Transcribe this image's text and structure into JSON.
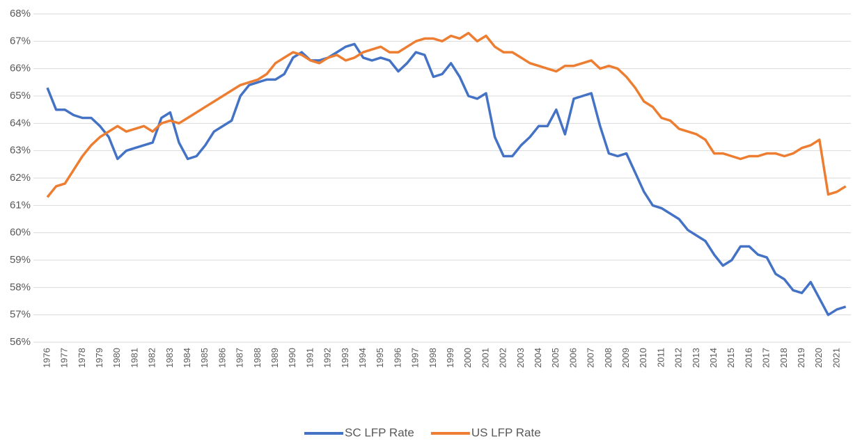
{
  "chart_data": {
    "type": "line",
    "categories": [
      "1976",
      null,
      "1977",
      null,
      "1978",
      null,
      "1979",
      null,
      "1980",
      null,
      "1981",
      null,
      "1982",
      null,
      "1983",
      null,
      "1984",
      null,
      "1985",
      null,
      "1986",
      null,
      "1987",
      null,
      "1988",
      null,
      "1989",
      null,
      "1990",
      null,
      "1991",
      null,
      "1992",
      null,
      "1993",
      null,
      "1994",
      null,
      "1995",
      null,
      "1996",
      null,
      "1997",
      null,
      "1998",
      null,
      "1999",
      null,
      "2000",
      null,
      "2001",
      null,
      "2002",
      null,
      "2003",
      null,
      "2004",
      null,
      "2005",
      null,
      "2006",
      null,
      "2007",
      null,
      "2008",
      null,
      "2009",
      null,
      "2010",
      null,
      "2011",
      null,
      "2012",
      null,
      "2013",
      null,
      "2014",
      null,
      "2015",
      null,
      "2016",
      null,
      "2017",
      null,
      "2018",
      null,
      "2019",
      null,
      "2020",
      null,
      "2021",
      null
    ],
    "series": [
      {
        "name": "SC LFP Rate",
        "color": "#4472c4",
        "values": [
          65.3,
          64.5,
          64.5,
          64.3,
          64.2,
          64.2,
          63.9,
          63.5,
          62.7,
          63.0,
          63.1,
          63.2,
          63.3,
          64.2,
          64.4,
          63.3,
          62.7,
          62.8,
          63.2,
          63.7,
          63.9,
          64.1,
          65.0,
          65.4,
          65.5,
          65.6,
          65.6,
          65.8,
          66.4,
          66.6,
          66.3,
          66.3,
          66.4,
          66.6,
          66.8,
          66.9,
          66.4,
          66.3,
          66.4,
          66.3,
          65.9,
          66.2,
          66.6,
          66.5,
          65.7,
          65.8,
          66.2,
          65.7,
          65.0,
          64.9,
          65.1,
          63.5,
          62.8,
          62.8,
          63.2,
          63.5,
          63.9,
          63.9,
          64.5,
          63.6,
          64.9,
          65.0,
          65.1,
          63.9,
          62.9,
          62.8,
          62.9,
          62.2,
          61.5,
          61.0,
          60.9,
          60.7,
          60.5,
          60.1,
          59.9,
          59.7,
          59.2,
          58.8,
          59.0,
          59.5,
          59.5,
          59.2,
          59.1,
          58.5,
          58.3,
          57.9,
          57.8,
          58.2,
          57.6,
          57.0,
          57.2,
          57.3
        ]
      },
      {
        "name": "US LFP Rate",
        "color": "#ed7d31",
        "values": [
          61.3,
          61.7,
          61.8,
          62.3,
          62.8,
          63.2,
          63.5,
          63.7,
          63.9,
          63.7,
          63.8,
          63.9,
          63.7,
          64.0,
          64.1,
          64.0,
          64.2,
          64.4,
          64.6,
          64.8,
          65.0,
          65.2,
          65.4,
          65.5,
          65.6,
          65.8,
          66.2,
          66.4,
          66.6,
          66.5,
          66.3,
          66.2,
          66.4,
          66.5,
          66.3,
          66.4,
          66.6,
          66.7,
          66.8,
          66.6,
          66.6,
          66.8,
          67.0,
          67.1,
          67.1,
          67.0,
          67.2,
          67.1,
          67.3,
          67.0,
          67.2,
          66.8,
          66.6,
          66.6,
          66.4,
          66.2,
          66.1,
          66.0,
          65.9,
          66.1,
          66.1,
          66.2,
          66.3,
          66.0,
          66.1,
          66.0,
          65.7,
          65.3,
          64.8,
          64.6,
          64.2,
          64.1,
          63.8,
          63.7,
          63.6,
          63.4,
          62.9,
          62.9,
          62.8,
          62.7,
          62.8,
          62.8,
          62.9,
          62.9,
          62.8,
          62.9,
          63.1,
          63.2,
          63.4,
          61.4,
          61.5,
          61.7
        ]
      }
    ],
    "ylim": [
      56,
      68
    ],
    "yticks": [
      {
        "value": 56,
        "label": "56%"
      },
      {
        "value": 57,
        "label": "57%"
      },
      {
        "value": 58,
        "label": "58%"
      },
      {
        "value": 59,
        "label": "59%"
      },
      {
        "value": 60,
        "label": "60%"
      },
      {
        "value": 61,
        "label": "61%"
      },
      {
        "value": 62,
        "label": "62%"
      },
      {
        "value": 63,
        "label": "63%"
      },
      {
        "value": 64,
        "label": "64%"
      },
      {
        "value": 65,
        "label": "65%"
      },
      {
        "value": 66,
        "label": "66%"
      },
      {
        "value": 67,
        "label": "67%"
      },
      {
        "value": 68,
        "label": "68%"
      }
    ],
    "grid": true,
    "legend": "bottom"
  }
}
